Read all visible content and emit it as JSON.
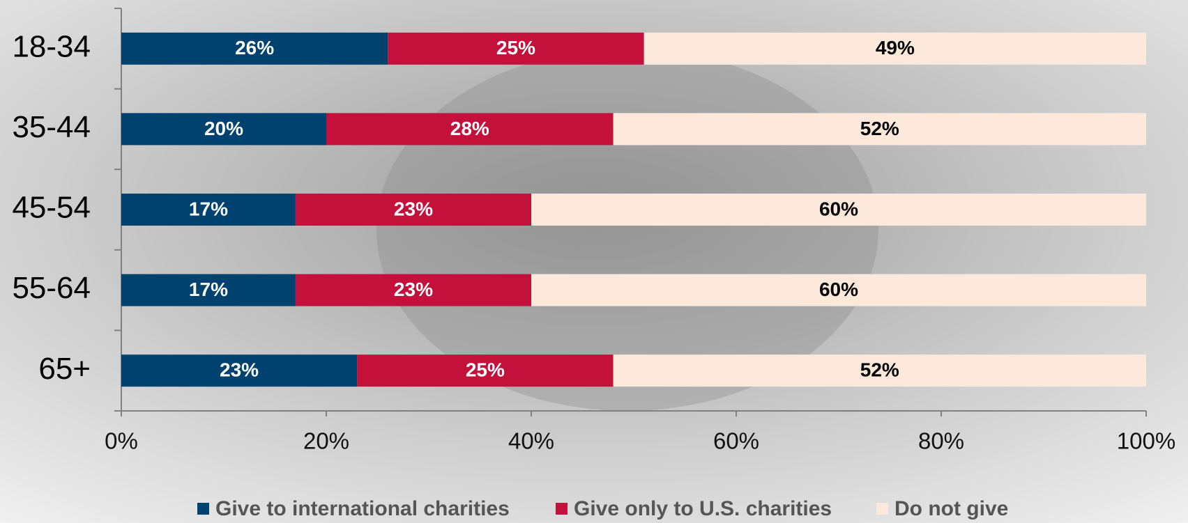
{
  "chart_data": {
    "type": "stacked-bar-horizontal",
    "categories": [
      "18-34",
      "35-44",
      "45-54",
      "55-64",
      "65+"
    ],
    "series": [
      {
        "name": "Give to international charities",
        "color": "#00426f",
        "label_color": "#ffffff",
        "values": [
          26,
          20,
          17,
          17,
          23
        ],
        "value_labels": [
          "26%",
          "20%",
          "17%",
          "17%",
          "23%"
        ]
      },
      {
        "name": "Give only to U.S. charities",
        "color": "#c3113b",
        "label_color": "#ffffff",
        "values": [
          25,
          28,
          23,
          23,
          25
        ],
        "value_labels": [
          "25%",
          "28%",
          "23%",
          "23%",
          "25%"
        ]
      },
      {
        "name": "Do not give",
        "color": "#fde9db",
        "label_color": "#000000",
        "values": [
          49,
          52,
          60,
          60,
          52
        ],
        "value_labels": [
          "49%",
          "52%",
          "60%",
          "60%",
          "52%"
        ]
      }
    ],
    "xlim": [
      0,
      100
    ],
    "xticks": [
      {
        "value": 0,
        "label": "0%"
      },
      {
        "value": 20,
        "label": "20%"
      },
      {
        "value": 40,
        "label": "40%"
      },
      {
        "value": 60,
        "label": "60%"
      },
      {
        "value": 80,
        "label": "80%"
      },
      {
        "value": 100,
        "label": "100%"
      }
    ],
    "legend": "bottom"
  }
}
